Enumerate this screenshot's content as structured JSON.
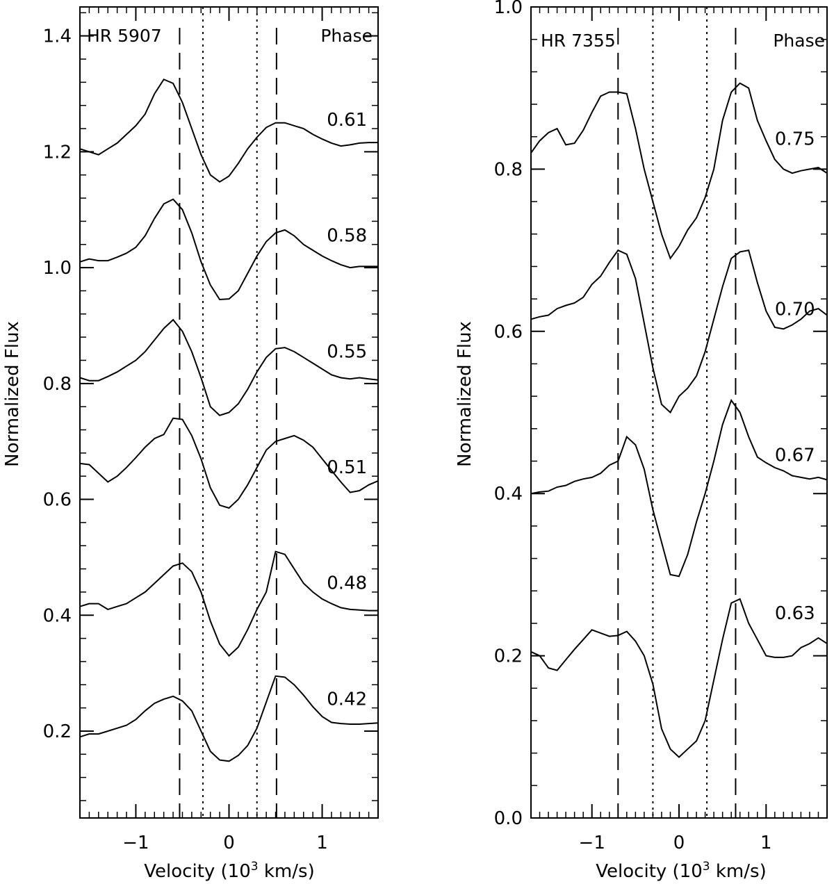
{
  "chart_data": [
    {
      "type": "line",
      "title": "HR 5907",
      "xlabel": "Velocity (10",
      "xlabel_sup": "3",
      "xlabel_tail": " km/s)",
      "ylabel": "Normalized Flux",
      "legend_label": "Phase",
      "xlim": [
        -1.6,
        1.6
      ],
      "ylim": [
        0.05,
        1.45
      ],
      "xticks": [
        {
          "value": -1,
          "label": "−1"
        },
        {
          "value": 0,
          "label": "0"
        },
        {
          "value": 1,
          "label": "1"
        }
      ],
      "xminor_step": 0.1,
      "yticks": [
        {
          "value": 0.2,
          "label": "0.2"
        },
        {
          "value": 0.4,
          "label": "0.4"
        },
        {
          "value": 0.6,
          "label": "0.6"
        },
        {
          "value": 0.8,
          "label": "0.8"
        },
        {
          "value": 1.0,
          "label": "1.0"
        },
        {
          "value": 1.2,
          "label": "1.2"
        },
        {
          "value": 1.4,
          "label": "1.4"
        }
      ],
      "yminor_step": 0.04,
      "dashed_lines": [
        -0.53,
        0.51
      ],
      "dotted_lines": [
        -0.28,
        0.3
      ],
      "series": [
        {
          "name": "0.61",
          "label_x": 1.05,
          "label_y": 1.245,
          "x": [
            -1.6,
            -1.5,
            -1.4,
            -1.3,
            -1.2,
            -1.1,
            -1.0,
            -0.9,
            -0.8,
            -0.7,
            -0.6,
            -0.5,
            -0.4,
            -0.3,
            -0.2,
            -0.1,
            0.0,
            0.1,
            0.2,
            0.3,
            0.4,
            0.5,
            0.6,
            0.7,
            0.8,
            0.9,
            1.0,
            1.1,
            1.2,
            1.3,
            1.4,
            1.5,
            1.6
          ],
          "values": [
            1.205,
            1.2,
            1.195,
            1.205,
            1.215,
            1.23,
            1.245,
            1.265,
            1.3,
            1.325,
            1.318,
            1.285,
            1.24,
            1.195,
            1.16,
            1.148,
            1.158,
            1.18,
            1.205,
            1.225,
            1.242,
            1.25,
            1.25,
            1.245,
            1.24,
            1.23,
            1.222,
            1.215,
            1.21,
            1.212,
            1.215,
            1.216,
            1.216
          ]
        },
        {
          "name": "0.58",
          "label_x": 1.05,
          "label_y": 1.045,
          "x": [
            -1.6,
            -1.5,
            -1.4,
            -1.3,
            -1.2,
            -1.1,
            -1.0,
            -0.9,
            -0.8,
            -0.7,
            -0.6,
            -0.5,
            -0.4,
            -0.3,
            -0.2,
            -0.1,
            0.0,
            0.1,
            0.2,
            0.3,
            0.4,
            0.5,
            0.6,
            0.7,
            0.8,
            0.9,
            1.0,
            1.1,
            1.2,
            1.3,
            1.4,
            1.5,
            1.6
          ],
          "values": [
            1.01,
            1.015,
            1.012,
            1.012,
            1.018,
            1.025,
            1.035,
            1.055,
            1.085,
            1.11,
            1.118,
            1.1,
            1.06,
            1.01,
            0.97,
            0.945,
            0.946,
            0.96,
            0.99,
            1.02,
            1.045,
            1.06,
            1.065,
            1.055,
            1.04,
            1.03,
            1.02,
            1.012,
            1.005,
            1.0,
            1.002,
            1.002,
            1.002
          ]
        },
        {
          "name": "0.55",
          "label_x": 1.05,
          "label_y": 0.845,
          "x": [
            -1.6,
            -1.5,
            -1.4,
            -1.3,
            -1.2,
            -1.1,
            -1.0,
            -0.9,
            -0.8,
            -0.7,
            -0.6,
            -0.5,
            -0.4,
            -0.3,
            -0.2,
            -0.1,
            0.0,
            0.1,
            0.2,
            0.3,
            0.4,
            0.5,
            0.6,
            0.7,
            0.8,
            0.9,
            1.0,
            1.1,
            1.2,
            1.3,
            1.4,
            1.5,
            1.6
          ],
          "values": [
            0.81,
            0.805,
            0.805,
            0.812,
            0.82,
            0.83,
            0.84,
            0.855,
            0.875,
            0.895,
            0.91,
            0.89,
            0.855,
            0.81,
            0.76,
            0.745,
            0.75,
            0.765,
            0.79,
            0.82,
            0.845,
            0.86,
            0.862,
            0.855,
            0.845,
            0.835,
            0.825,
            0.815,
            0.81,
            0.808,
            0.81,
            0.808,
            0.806
          ]
        },
        {
          "name": "0.51",
          "label_x": 1.05,
          "label_y": 0.645,
          "x": [
            -1.6,
            -1.5,
            -1.4,
            -1.3,
            -1.2,
            -1.1,
            -1.0,
            -0.9,
            -0.8,
            -0.7,
            -0.6,
            -0.5,
            -0.4,
            -0.3,
            -0.2,
            -0.1,
            0.0,
            0.1,
            0.2,
            0.3,
            0.4,
            0.5,
            0.6,
            0.7,
            0.8,
            0.9,
            1.0,
            1.1,
            1.2,
            1.3,
            1.4,
            1.5,
            1.6
          ],
          "values": [
            0.662,
            0.66,
            0.645,
            0.63,
            0.64,
            0.655,
            0.672,
            0.69,
            0.705,
            0.712,
            0.74,
            0.738,
            0.71,
            0.67,
            0.62,
            0.59,
            0.585,
            0.6,
            0.625,
            0.655,
            0.685,
            0.7,
            0.705,
            0.71,
            0.702,
            0.69,
            0.67,
            0.65,
            0.63,
            0.612,
            0.615,
            0.625,
            0.632
          ]
        },
        {
          "name": "0.48",
          "label_x": 1.05,
          "label_y": 0.445,
          "x": [
            -1.6,
            -1.5,
            -1.4,
            -1.3,
            -1.2,
            -1.1,
            -1.0,
            -0.9,
            -0.8,
            -0.7,
            -0.6,
            -0.5,
            -0.4,
            -0.3,
            -0.2,
            -0.1,
            0.0,
            0.1,
            0.2,
            0.3,
            0.4,
            0.5,
            0.6,
            0.7,
            0.8,
            0.9,
            1.0,
            1.1,
            1.2,
            1.3,
            1.4,
            1.5,
            1.6
          ],
          "values": [
            0.415,
            0.42,
            0.42,
            0.41,
            0.415,
            0.42,
            0.43,
            0.44,
            0.455,
            0.47,
            0.485,
            0.49,
            0.475,
            0.44,
            0.39,
            0.35,
            0.33,
            0.345,
            0.375,
            0.41,
            0.44,
            0.51,
            0.505,
            0.48,
            0.455,
            0.44,
            0.428,
            0.42,
            0.413,
            0.41,
            0.409,
            0.408,
            0.408
          ]
        },
        {
          "name": "0.42",
          "label_x": 1.05,
          "label_y": 0.245,
          "x": [
            -1.6,
            -1.5,
            -1.4,
            -1.3,
            -1.2,
            -1.1,
            -1.0,
            -0.9,
            -0.8,
            -0.7,
            -0.6,
            -0.5,
            -0.4,
            -0.3,
            -0.2,
            -0.1,
            0.0,
            0.1,
            0.2,
            0.3,
            0.4,
            0.5,
            0.6,
            0.7,
            0.8,
            0.9,
            1.0,
            1.1,
            1.2,
            1.3,
            1.4,
            1.5,
            1.6
          ],
          "values": [
            0.19,
            0.195,
            0.195,
            0.2,
            0.205,
            0.21,
            0.22,
            0.235,
            0.248,
            0.255,
            0.26,
            0.252,
            0.235,
            0.2,
            0.165,
            0.15,
            0.148,
            0.158,
            0.175,
            0.205,
            0.25,
            0.295,
            0.293,
            0.28,
            0.262,
            0.242,
            0.225,
            0.215,
            0.213,
            0.212,
            0.212,
            0.213,
            0.214
          ]
        }
      ]
    },
    {
      "type": "line",
      "title": "HR 7355",
      "xlabel": "Velocity (10",
      "xlabel_sup": "3",
      "xlabel_tail": " km/s)",
      "ylabel": "Normalized Flux",
      "legend_label": "Phase",
      "xlim": [
        -1.7,
        1.7
      ],
      "ylim": [
        0.0,
        1.0
      ],
      "xticks": [
        {
          "value": -1,
          "label": "−1"
        },
        {
          "value": 0,
          "label": "0"
        },
        {
          "value": 1,
          "label": "1"
        }
      ],
      "xminor_step": 0.1,
      "yticks": [
        {
          "value": 0.0,
          "label": "0.0"
        },
        {
          "value": 0.2,
          "label": "0.2"
        },
        {
          "value": 0.4,
          "label": "0.4"
        },
        {
          "value": 0.6,
          "label": "0.6"
        },
        {
          "value": 0.8,
          "label": "0.8"
        },
        {
          "value": 1.0,
          "label": "1.0"
        }
      ],
      "yminor_step": 0.04,
      "dashed_lines": [
        -0.7,
        0.65
      ],
      "dotted_lines": [
        -0.3,
        0.32
      ],
      "series": [
        {
          "name": "0.75",
          "label_x": 1.1,
          "label_y": 0.83,
          "x": [
            -1.7,
            -1.6,
            -1.5,
            -1.4,
            -1.3,
            -1.2,
            -1.1,
            -1.0,
            -0.9,
            -0.8,
            -0.7,
            -0.6,
            -0.5,
            -0.4,
            -0.3,
            -0.2,
            -0.1,
            0.0,
            0.1,
            0.2,
            0.3,
            0.4,
            0.5,
            0.6,
            0.7,
            0.8,
            0.9,
            1.0,
            1.1,
            1.2,
            1.3,
            1.4,
            1.5,
            1.6,
            1.7
          ],
          "values": [
            0.82,
            0.835,
            0.845,
            0.85,
            0.83,
            0.832,
            0.848,
            0.87,
            0.89,
            0.895,
            0.895,
            0.893,
            0.85,
            0.8,
            0.76,
            0.72,
            0.69,
            0.705,
            0.725,
            0.74,
            0.765,
            0.8,
            0.86,
            0.895,
            0.906,
            0.9,
            0.86,
            0.835,
            0.812,
            0.8,
            0.795,
            0.798,
            0.8,
            0.802,
            0.795
          ]
        },
        {
          "name": "0.70",
          "label_x": 1.1,
          "label_y": 0.62,
          "x": [
            -1.7,
            -1.6,
            -1.5,
            -1.4,
            -1.3,
            -1.2,
            -1.1,
            -1.0,
            -0.9,
            -0.8,
            -0.7,
            -0.6,
            -0.5,
            -0.4,
            -0.3,
            -0.2,
            -0.1,
            0.0,
            0.1,
            0.2,
            0.3,
            0.4,
            0.5,
            0.6,
            0.7,
            0.8,
            0.9,
            1.0,
            1.1,
            1.2,
            1.3,
            1.4,
            1.5,
            1.6,
            1.7
          ],
          "values": [
            0.615,
            0.618,
            0.62,
            0.628,
            0.632,
            0.635,
            0.642,
            0.658,
            0.668,
            0.685,
            0.7,
            0.695,
            0.665,
            0.61,
            0.555,
            0.51,
            0.5,
            0.52,
            0.53,
            0.545,
            0.575,
            0.615,
            0.655,
            0.69,
            0.698,
            0.7,
            0.66,
            0.625,
            0.605,
            0.603,
            0.608,
            0.615,
            0.625,
            0.628,
            0.62
          ]
        },
        {
          "name": "0.67",
          "label_x": 1.1,
          "label_y": 0.44,
          "x": [
            -1.7,
            -1.6,
            -1.5,
            -1.4,
            -1.3,
            -1.2,
            -1.1,
            -1.0,
            -0.9,
            -0.8,
            -0.7,
            -0.6,
            -0.5,
            -0.4,
            -0.3,
            -0.2,
            -0.1,
            0.0,
            0.1,
            0.2,
            0.3,
            0.4,
            0.5,
            0.6,
            0.7,
            0.8,
            0.9,
            1.0,
            1.1,
            1.2,
            1.3,
            1.4,
            1.5,
            1.6,
            1.7
          ],
          "values": [
            0.4,
            0.402,
            0.403,
            0.408,
            0.41,
            0.415,
            0.418,
            0.42,
            0.425,
            0.435,
            0.44,
            0.47,
            0.46,
            0.43,
            0.38,
            0.34,
            0.3,
            0.298,
            0.325,
            0.365,
            0.4,
            0.44,
            0.485,
            0.515,
            0.5,
            0.47,
            0.445,
            0.438,
            0.432,
            0.428,
            0.422,
            0.42,
            0.418,
            0.42,
            0.417
          ]
        },
        {
          "name": "0.63",
          "label_x": 1.1,
          "label_y": 0.245,
          "x": [
            -1.7,
            -1.6,
            -1.5,
            -1.4,
            -1.3,
            -1.2,
            -1.1,
            -1.0,
            -0.9,
            -0.8,
            -0.7,
            -0.6,
            -0.5,
            -0.4,
            -0.3,
            -0.2,
            -0.1,
            0.0,
            0.1,
            0.2,
            0.3,
            0.4,
            0.5,
            0.6,
            0.7,
            0.8,
            0.9,
            1.0,
            1.1,
            1.2,
            1.3,
            1.4,
            1.5,
            1.6,
            1.7
          ],
          "values": [
            0.205,
            0.2,
            0.185,
            0.182,
            0.195,
            0.208,
            0.22,
            0.232,
            0.228,
            0.224,
            0.225,
            0.23,
            0.218,
            0.2,
            0.165,
            0.11,
            0.085,
            0.075,
            0.085,
            0.095,
            0.12,
            0.17,
            0.22,
            0.265,
            0.27,
            0.24,
            0.22,
            0.2,
            0.198,
            0.198,
            0.2,
            0.21,
            0.215,
            0.222,
            0.215
          ]
        }
      ]
    }
  ]
}
